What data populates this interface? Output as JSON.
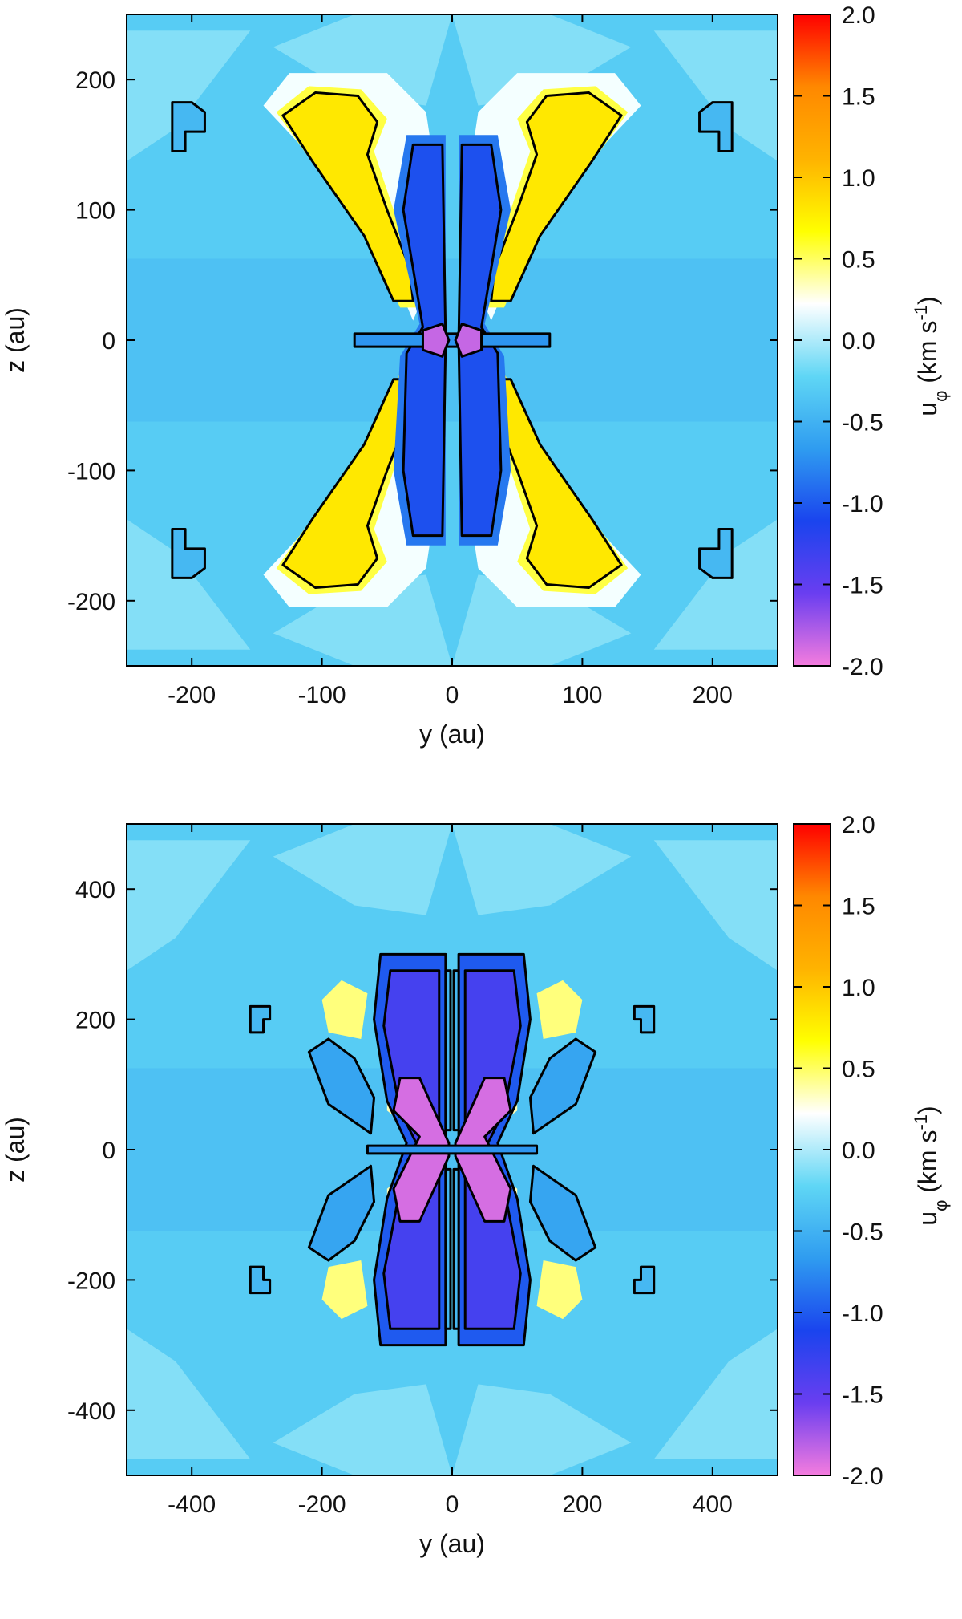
{
  "chart_data": [
    {
      "type": "heatmap",
      "panel": "top",
      "xlabel": "y (au)",
      "ylabel": "z (au)",
      "xlim": [
        -250,
        250
      ],
      "ylim": [
        -250,
        250
      ],
      "x_ticks": [
        "-200",
        "-100",
        "0",
        "100",
        "200"
      ],
      "x_tick_values": [
        -200,
        -100,
        0,
        100,
        200
      ],
      "y_ticks": [
        "200",
        "100",
        "0",
        "-100",
        "-200"
      ],
      "y_tick_values": [
        200,
        100,
        0,
        -100,
        -200
      ],
      "colorbar": {
        "label_main": "u",
        "label_sub": "φ",
        "label_unit": " (km s",
        "label_exp": "-1",
        "label_close": ")",
        "range": [
          -2.0,
          2.0
        ],
        "ticks": [
          "2.0",
          "1.5",
          "1.0",
          "0.5",
          "0.0",
          "-0.5",
          "-1.0",
          "-1.5",
          "-2.0"
        ],
        "tick_values": [
          2.0,
          1.5,
          1.0,
          0.5,
          0.0,
          -0.5,
          -1.0,
          -1.5,
          -2.0
        ],
        "colors": [
          "#f47cde",
          "#6a3ef0",
          "#1a44ee",
          "#2f9cf0",
          "#5fd6f5",
          "#ffffff",
          "#ffff00",
          "#ffb300",
          "#ff8800",
          "#ff0000"
        ]
      },
      "background_value": -0.3,
      "features": [
        {
          "kind": "lobe",
          "value": 0.8,
          "description": "upper-left yellow/orange lobe",
          "y": [
            -120,
            -50
          ],
          "z": [
            45,
            170
          ]
        },
        {
          "kind": "lobe",
          "value": 0.8,
          "description": "upper-right yellow/orange lobe",
          "y": [
            50,
            120
          ],
          "z": [
            45,
            170
          ]
        },
        {
          "kind": "lobe",
          "value": 0.8,
          "description": "lower-left yellow/orange lobe",
          "y": [
            -120,
            -50
          ],
          "z": [
            -170,
            -45
          ]
        },
        {
          "kind": "lobe",
          "value": 0.8,
          "description": "lower-right yellow/orange lobe",
          "y": [
            50,
            120
          ],
          "z": [
            -170,
            -45
          ]
        },
        {
          "kind": "column",
          "value": -1.0,
          "description": "left blue column",
          "y": [
            -45,
            -3
          ],
          "z": [
            -125,
            125
          ]
        },
        {
          "kind": "column",
          "value": -1.0,
          "description": "right blue column",
          "y": [
            3,
            45
          ],
          "z": [
            -125,
            125
          ]
        },
        {
          "kind": "core",
          "value": -1.8,
          "description": "left violet core",
          "y": [
            -18,
            -8
          ],
          "z": [
            -8,
            8
          ]
        },
        {
          "kind": "core",
          "value": -1.8,
          "description": "right violet core",
          "y": [
            8,
            18
          ],
          "z": [
            -8,
            8
          ]
        },
        {
          "kind": "disk",
          "value": -0.7,
          "description": "midplane blue disk",
          "y": [
            -75,
            75
          ],
          "z": [
            -3,
            3
          ]
        },
        {
          "kind": "islet",
          "value": -0.55,
          "description": "small contour islets",
          "y": [
            -210,
            210
          ],
          "z": [
            -145,
            145
          ]
        }
      ]
    },
    {
      "type": "heatmap",
      "panel": "bottom",
      "xlabel": "y (au)",
      "ylabel": "z (au)",
      "xlim": [
        -500,
        500
      ],
      "ylim": [
        -500,
        500
      ],
      "x_ticks": [
        "-400",
        "-200",
        "0",
        "200",
        "400"
      ],
      "x_tick_values": [
        -400,
        -200,
        0,
        200,
        400
      ],
      "y_ticks": [
        "400",
        "200",
        "0",
        "-200",
        "-400"
      ],
      "y_tick_values": [
        400,
        200,
        0,
        -200,
        -400
      ],
      "colorbar": {
        "label_main": "u",
        "label_sub": "φ",
        "label_unit": " (km s",
        "label_exp": "-1",
        "label_close": ")",
        "range": [
          -2.0,
          2.0
        ],
        "ticks": [
          "2.0",
          "1.5",
          "1.0",
          "0.5",
          "0.0",
          "-0.5",
          "-1.0",
          "-1.5",
          "-2.0"
        ],
        "tick_values": [
          2.0,
          1.5,
          1.0,
          0.5,
          0.0,
          -0.5,
          -1.0,
          -1.5,
          -2.0
        ],
        "colors": [
          "#f47cde",
          "#6a3ef0",
          "#1a44ee",
          "#2f9cf0",
          "#5fd6f5",
          "#ffffff",
          "#ffff00",
          "#ffb300",
          "#ff8800",
          "#ff0000"
        ]
      },
      "background_value": -0.3,
      "features": [
        {
          "kind": "body",
          "value": -1.0,
          "description": "central blue body",
          "y": [
            -120,
            120
          ],
          "z": [
            -300,
            300
          ]
        },
        {
          "kind": "wing",
          "value": -1.4,
          "description": "left violet wing",
          "y": [
            -110,
            -10
          ],
          "z": [
            -270,
            270
          ]
        },
        {
          "kind": "wing",
          "value": -1.4,
          "description": "right violet wing",
          "y": [
            10,
            110
          ],
          "z": [
            -270,
            270
          ]
        },
        {
          "kind": "core",
          "value": -1.9,
          "description": "pink X-shaped core",
          "y": [
            -90,
            90
          ],
          "z": [
            -100,
            100
          ]
        },
        {
          "kind": "side-lobe",
          "value": -0.6,
          "description": "outer blue side lobes",
          "y": [
            -210,
            210
          ],
          "z": [
            -140,
            140
          ]
        },
        {
          "kind": "blob",
          "value": 0.4,
          "description": "yellow blobs",
          "y": [
            -180,
            180
          ],
          "z": [
            -240,
            240
          ]
        },
        {
          "kind": "islet",
          "value": -0.55,
          "description": "small contour islets",
          "y": [
            -310,
            310
          ],
          "z": [
            -220,
            220
          ]
        }
      ]
    }
  ]
}
